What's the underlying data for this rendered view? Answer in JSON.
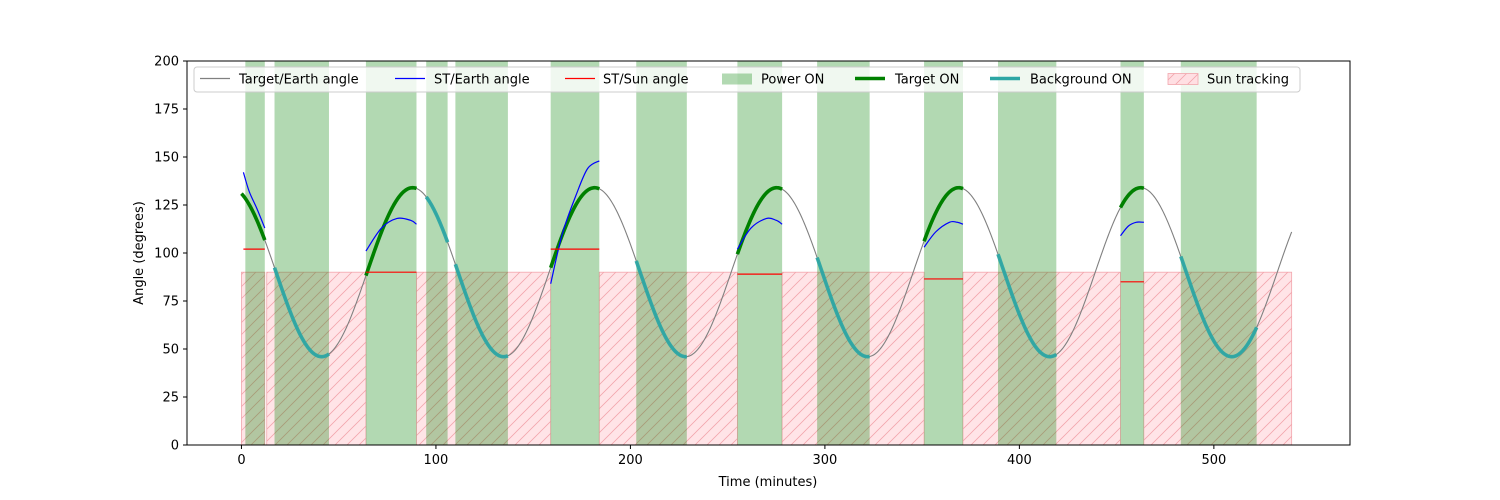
{
  "chart_data": {
    "type": "line",
    "title": "",
    "xlabel": "Time (minutes)",
    "ylabel": "Angle (degrees)",
    "xlim": [
      -28,
      570
    ],
    "ylim": [
      0,
      200
    ],
    "xticks": [
      0,
      100,
      200,
      300,
      400,
      500
    ],
    "yticks": [
      0,
      25,
      50,
      75,
      100,
      125,
      150,
      175,
      200
    ],
    "grid": false,
    "legend_position": "top",
    "colors": {
      "target_earth": "#808080",
      "st_earth": "#0000ff",
      "st_sun": "#ff0000",
      "power_on": "#b2d8b2",
      "target_on": "#008000",
      "background_on": "#2ca6a4",
      "sun_tracking_fill": "#ffdfe3",
      "sun_tracking_hatch": "#f2a6ad"
    },
    "legend": [
      {
        "key": "target_earth",
        "label": "Target/Earth angle",
        "style": "line"
      },
      {
        "key": "st_earth",
        "label": "ST/Earth angle",
        "style": "line"
      },
      {
        "key": "st_sun",
        "label": "ST/Sun angle",
        "style": "line"
      },
      {
        "key": "power_on",
        "label": "Power ON",
        "style": "patch"
      },
      {
        "key": "target_on",
        "label": "Target ON",
        "style": "thick"
      },
      {
        "key": "background_on",
        "label": "Background ON",
        "style": "thick"
      },
      {
        "key": "sun_tracking",
        "label": "Sun tracking",
        "style": "hatch"
      }
    ],
    "target_earth_wave": {
      "period_min": 93.6,
      "mean_deg": 90,
      "amplitude_deg": 44,
      "peak_time_min": 88,
      "t_start": 0,
      "t_end": 540
    },
    "power_on_intervals": [
      [
        2,
        12
      ],
      [
        17,
        45
      ],
      [
        64,
        90
      ],
      [
        95,
        106
      ],
      [
        110,
        137
      ],
      [
        159,
        184
      ],
      [
        203,
        229
      ],
      [
        255,
        278
      ],
      [
        296,
        323
      ],
      [
        351,
        371
      ],
      [
        389,
        419
      ],
      [
        452,
        464
      ],
      [
        483,
        522
      ]
    ],
    "target_on_intervals": [
      [
        0,
        12
      ],
      [
        64,
        90
      ],
      [
        159,
        184
      ],
      [
        255,
        278
      ],
      [
        351,
        371
      ],
      [
        452,
        464
      ]
    ],
    "background_on_intervals": [
      [
        17,
        45
      ],
      [
        95,
        106
      ],
      [
        110,
        137
      ],
      [
        203,
        229
      ],
      [
        296,
        323
      ],
      [
        389,
        419
      ],
      [
        483,
        522
      ]
    ],
    "sun_tracking_level_deg": 90,
    "sun_tracking_intervals": [
      [
        0,
        12
      ],
      [
        13,
        64
      ],
      [
        90,
        159
      ],
      [
        184,
        255
      ],
      [
        278,
        351
      ],
      [
        371,
        452
      ],
      [
        464,
        540
      ]
    ],
    "st_sun_segments": [
      {
        "t": [
          1,
          12
        ],
        "value": 102
      },
      {
        "t": [
          64,
          90
        ],
        "value": 90
      },
      {
        "t": [
          159,
          184
        ],
        "value": 102
      },
      {
        "t": [
          255,
          278
        ],
        "value": 89
      },
      {
        "t": [
          351,
          371
        ],
        "value": 86.5
      },
      {
        "t": [
          452,
          464
        ],
        "value": 85
      }
    ],
    "st_earth_segments": [
      {
        "t": [
          1,
          4,
          8,
          12
        ],
        "values": [
          142,
          132,
          123,
          113
        ]
      },
      {
        "t": [
          64,
          72,
          80,
          87,
          90
        ],
        "values": [
          101,
          113,
          118,
          117,
          115
        ]
      },
      {
        "t": [
          159,
          165,
          172,
          178,
          184
        ],
        "values": [
          84,
          110,
          130,
          144,
          148
        ]
      },
      {
        "t": [
          255,
          262,
          270,
          275,
          278
        ],
        "values": [
          102,
          113,
          118,
          117,
          115
        ]
      },
      {
        "t": [
          351,
          357,
          364,
          368,
          371
        ],
        "values": [
          103,
          111,
          116,
          116,
          115
        ]
      },
      {
        "t": [
          452,
          456,
          460,
          464
        ],
        "values": [
          109,
          114,
          116,
          116
        ]
      }
    ]
  }
}
